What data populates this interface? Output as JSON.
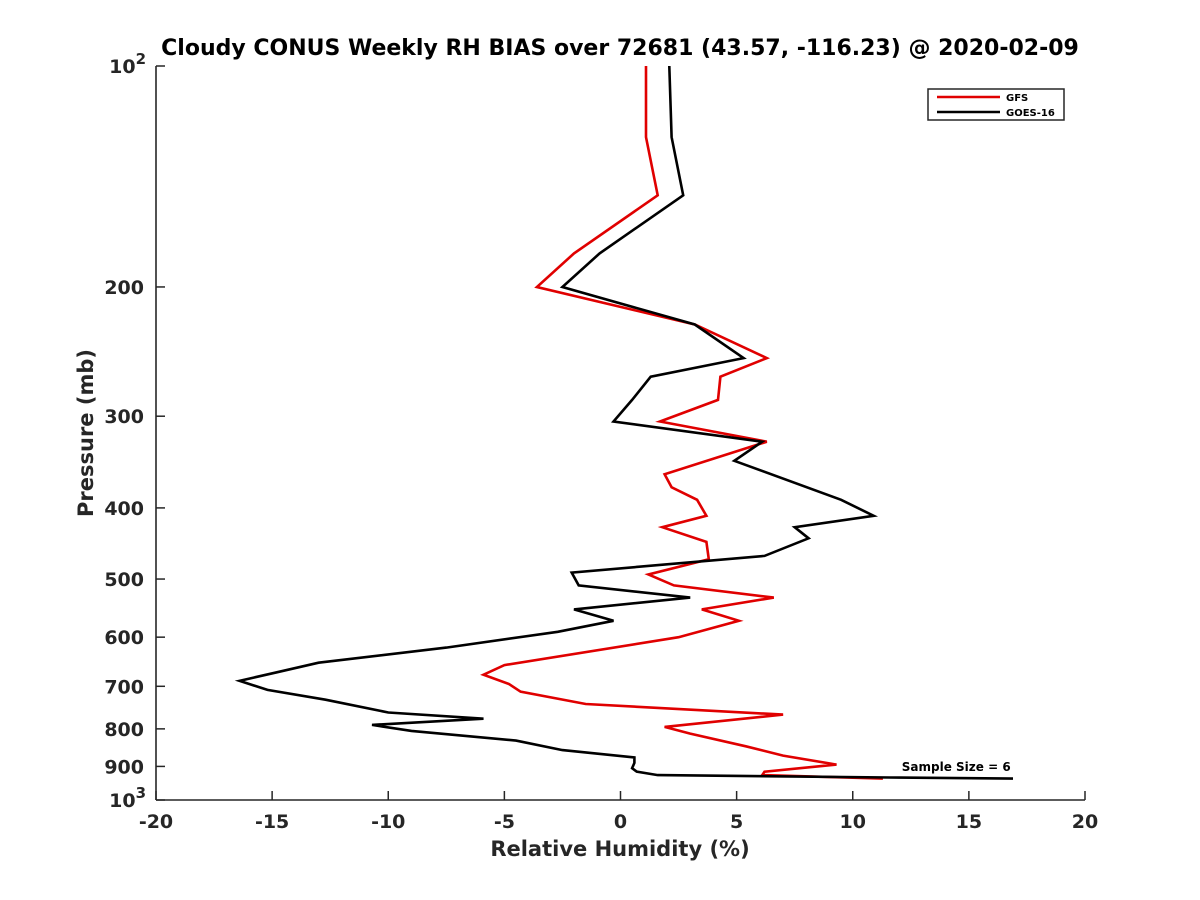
{
  "chart_data": {
    "type": "line",
    "title": "Cloudy CONUS Weekly RH BIAS over 72681 (43.57, -116.23) @ 2020-02-09",
    "xlabel": "Relative Humidity (%)",
    "ylabel": "Pressure (mb)",
    "xlim": [
      -20,
      20
    ],
    "ylim": [
      100,
      1000
    ],
    "yscale": "log",
    "y_reversed": true,
    "grid": false,
    "legend_position": "top-right",
    "x_ticks": [
      "-20",
      "-15",
      "-10",
      "-5",
      "0",
      "5",
      "10",
      "15",
      "20"
    ],
    "y_ticks": [
      {
        "value": 100,
        "base": "10",
        "exp": "2",
        "label": ""
      },
      {
        "value": 200,
        "label": "200"
      },
      {
        "value": 300,
        "label": "300"
      },
      {
        "value": 400,
        "label": "400"
      },
      {
        "value": 500,
        "label": "500"
      },
      {
        "value": 600,
        "label": "600"
      },
      {
        "value": 700,
        "label": "700"
      },
      {
        "value": 800,
        "label": "800"
      },
      {
        "value": 900,
        "label": "900"
      },
      {
        "value": 1000,
        "base": "10",
        "exp": "3",
        "label": ""
      }
    ],
    "series": [
      {
        "name": "GFS",
        "color": "#e00000",
        "points": [
          [
            1.1,
            100
          ],
          [
            1.1,
            125
          ],
          [
            1.6,
            150
          ],
          [
            -2,
            180
          ],
          [
            -3.6,
            200
          ],
          [
            3.2,
            225
          ],
          [
            6.3,
            250
          ],
          [
            4.3,
            265
          ],
          [
            4.2,
            285
          ],
          [
            1.7,
            305
          ],
          [
            6.3,
            325
          ],
          [
            1.9,
            360
          ],
          [
            2.2,
            375
          ],
          [
            3.3,
            390
          ],
          [
            3.7,
            410
          ],
          [
            1.8,
            425
          ],
          [
            3.7,
            445
          ],
          [
            3.8,
            470
          ],
          [
            1.2,
            493
          ],
          [
            2.3,
            510
          ],
          [
            6.6,
            530
          ],
          [
            3.5,
            550
          ],
          [
            5.1,
            570
          ],
          [
            2.5,
            600
          ],
          [
            -5,
            655
          ],
          [
            -5.9,
            675
          ],
          [
            -4.8,
            695
          ],
          [
            -4.3,
            712
          ],
          [
            -1.5,
            740
          ],
          [
            7,
            765
          ],
          [
            1.9,
            795
          ],
          [
            3,
            812
          ],
          [
            5.4,
            845
          ],
          [
            7,
            870
          ],
          [
            9.3,
            895
          ],
          [
            6.2,
            915
          ],
          [
            6.1,
            925
          ],
          [
            11.3,
            935
          ]
        ]
      },
      {
        "name": "GOES-16",
        "color": "#000000",
        "points": [
          [
            2.1,
            100
          ],
          [
            2.2,
            125
          ],
          [
            2.7,
            150
          ],
          [
            -0.9,
            180
          ],
          [
            -2.5,
            200
          ],
          [
            3.2,
            225
          ],
          [
            5.3,
            250
          ],
          [
            1.3,
            265
          ],
          [
            0.5,
            285
          ],
          [
            -0.3,
            305
          ],
          [
            6.1,
            325
          ],
          [
            4.9,
            345
          ],
          [
            9.5,
            390
          ],
          [
            10.9,
            410
          ],
          [
            7.5,
            425
          ],
          [
            8.1,
            440
          ],
          [
            6.2,
            465
          ],
          [
            -2.1,
            490
          ],
          [
            -1.8,
            510
          ],
          [
            3,
            530
          ],
          [
            -2,
            550
          ],
          [
            -0.3,
            570
          ],
          [
            -2.7,
            590
          ],
          [
            -7.5,
            620
          ],
          [
            -13,
            650
          ],
          [
            -14.8,
            670
          ],
          [
            -16.4,
            688
          ],
          [
            -15.2,
            708
          ],
          [
            -12.7,
            730
          ],
          [
            -10,
            760
          ],
          [
            -5.9,
            775
          ],
          [
            -10.7,
            790
          ],
          [
            -9,
            805
          ],
          [
            -4.5,
            830
          ],
          [
            -2.5,
            855
          ],
          [
            0.6,
            875
          ],
          [
            0.6,
            890
          ],
          [
            0.5,
            905
          ],
          [
            0.7,
            915
          ],
          [
            1.6,
            925
          ],
          [
            12,
            932
          ],
          [
            16.9,
            935
          ]
        ]
      }
    ],
    "annotations": [
      {
        "text": "Sample Size = 6",
        "x": 16.8,
        "y": 925
      }
    ]
  }
}
